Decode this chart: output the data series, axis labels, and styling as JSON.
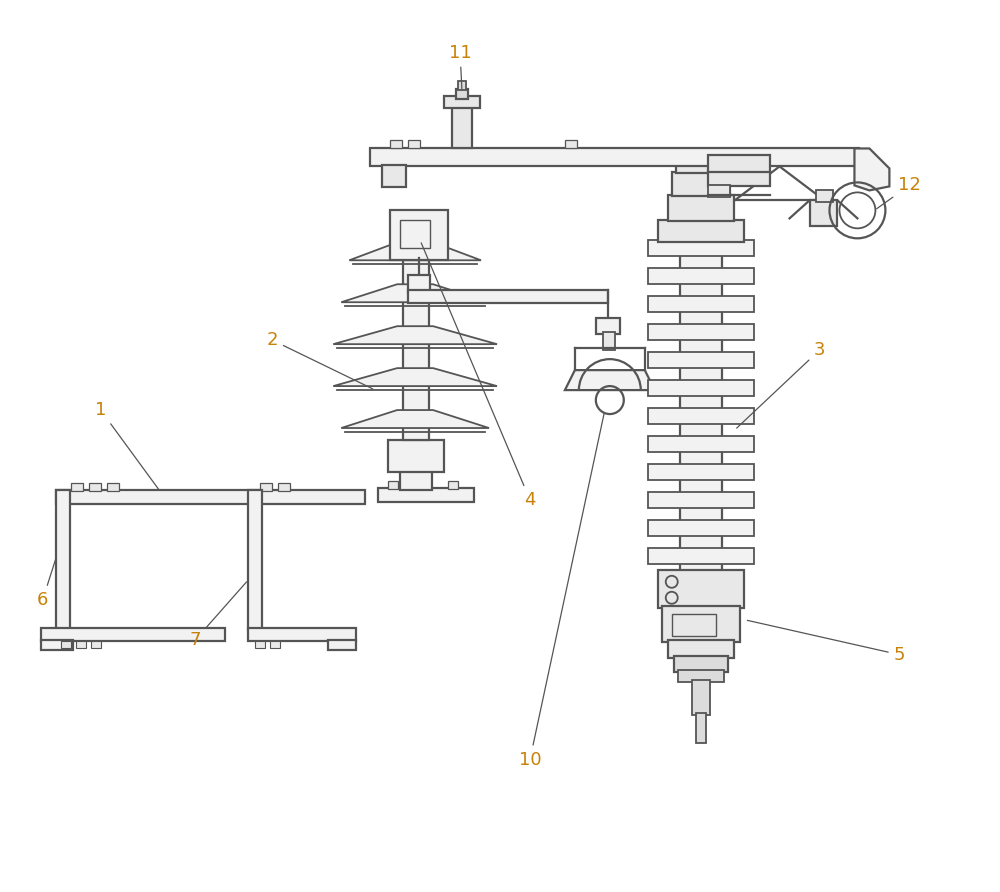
{
  "bg_color": "#ffffff",
  "line_color": "#555555",
  "line_width": 1.3,
  "label_color": "#c8820a",
  "label_fontsize": 13,
  "fig_w": 10.0,
  "fig_h": 8.92
}
